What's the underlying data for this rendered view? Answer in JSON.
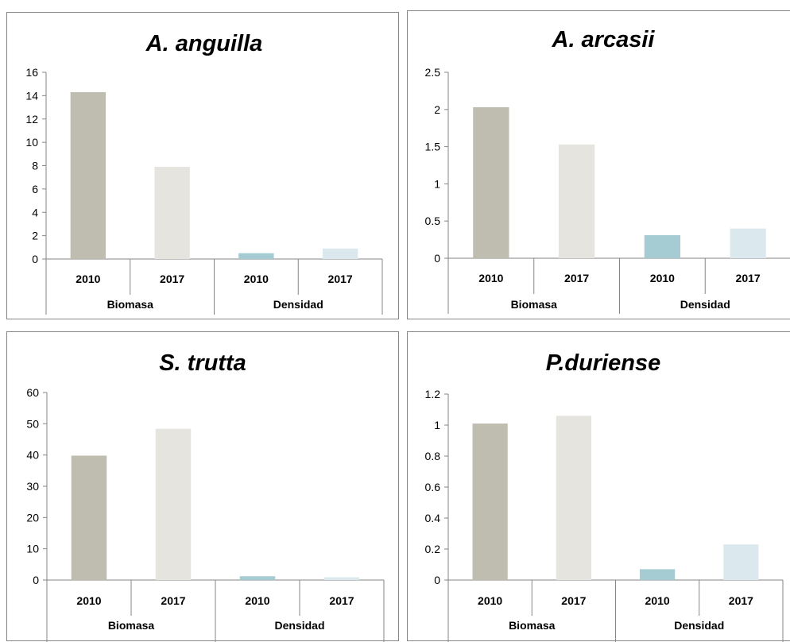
{
  "colors": {
    "biomasa_2010": "#bfbdaf",
    "biomasa_2017": "#e5e4df",
    "densidad_2010": "#a5cbd3",
    "densidad_2017": "#dbe9ee",
    "axis": "#868686"
  },
  "chart_data": [
    {
      "type": "bar",
      "title": "A. anguilla",
      "groups": [
        {
          "label": "Biomasa",
          "categories": [
            "2010",
            "2017"
          ]
        },
        {
          "label": "Densidad",
          "categories": [
            "2010",
            "2017"
          ]
        }
      ],
      "values": [
        14.3,
        7.9,
        0.5,
        0.9
      ],
      "ylim": [
        0,
        16
      ],
      "yticks": [
        "0",
        "2",
        "4",
        "6",
        "8",
        "10",
        "12",
        "14",
        "16"
      ],
      "grid": false
    },
    {
      "type": "bar",
      "title": "A. arcasii",
      "groups": [
        {
          "label": "Biomasa",
          "categories": [
            "2010",
            "2017"
          ]
        },
        {
          "label": "Densidad",
          "categories": [
            "2010",
            "2017"
          ]
        }
      ],
      "values": [
        2.03,
        1.53,
        0.31,
        0.4
      ],
      "ylim": [
        0,
        2.5
      ],
      "yticks": [
        "0",
        "0.5",
        "1",
        "1.5",
        "2",
        "2.5"
      ],
      "grid": false
    },
    {
      "type": "bar",
      "title": "S. trutta",
      "groups": [
        {
          "label": "Biomasa",
          "categories": [
            "2010",
            "2017"
          ]
        },
        {
          "label": "Densidad",
          "categories": [
            "2010",
            "2017"
          ]
        }
      ],
      "values": [
        39.8,
        48.4,
        1.2,
        0.9
      ],
      "ylim": [
        0,
        60
      ],
      "yticks": [
        "0",
        "10",
        "20",
        "30",
        "40",
        "50",
        "60"
      ],
      "grid": false
    },
    {
      "type": "bar",
      "title": "P.duriense",
      "groups": [
        {
          "label": "Biomasa",
          "categories": [
            "2010",
            "2017"
          ]
        },
        {
          "label": "Densidad",
          "categories": [
            "2010",
            "2017"
          ]
        }
      ],
      "values": [
        1.01,
        1.06,
        0.07,
        0.23
      ],
      "ylim": [
        0,
        1.2
      ],
      "yticks": [
        "0",
        "0.2",
        "0.4",
        "0.6",
        "0.8",
        "1",
        "1.2"
      ],
      "grid": false
    }
  ]
}
